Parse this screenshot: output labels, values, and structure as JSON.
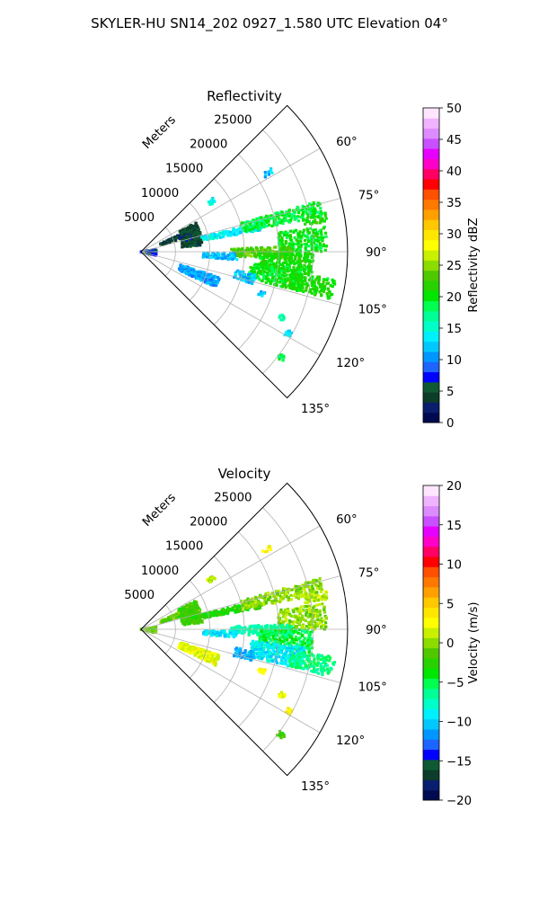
{
  "figure": {
    "title": "SKYLER-HU  SN14_202  0927_1.580 UTC Elevation 04°"
  },
  "chart_data": [
    {
      "type": "heatmap",
      "subtype": "polar-sector",
      "title": "Reflectivity",
      "radial_label": "Meters",
      "r_range": [
        0,
        30000
      ],
      "r_ticks": [
        5000,
        10000,
        15000,
        20000,
        25000
      ],
      "r_tick_labels": [
        "5000",
        "10000",
        "15000",
        "20000",
        "25000"
      ],
      "theta_range_deg": [
        45,
        135
      ],
      "theta_ticks_deg": [
        60,
        75,
        90,
        105,
        120,
        135
      ],
      "theta_tick_labels": [
        "60°",
        "75°",
        "90°",
        "105°",
        "120°",
        "135°"
      ],
      "grid": true,
      "colorbar": {
        "label": "Reflectivity dBZ",
        "range": [
          0,
          50
        ],
        "ticks": [
          0,
          5,
          10,
          15,
          20,
          25,
          30,
          35,
          40,
          45,
          50
        ],
        "tick_labels": [
          "0",
          "5",
          "10",
          "15",
          "20",
          "25",
          "30",
          "35",
          "40",
          "45",
          "50"
        ],
        "colors": [
          "#000a50",
          "#0a1e6e",
          "#0c3c2a",
          "#0f5a32",
          "#0000ff",
          "#1e64ff",
          "#0096ff",
          "#00c8ff",
          "#00f0ff",
          "#00ffc8",
          "#00ff96",
          "#00ff50",
          "#00e600",
          "#28d200",
          "#50c800",
          "#8cdc00",
          "#c8f000",
          "#ffff00",
          "#ffe600",
          "#ffc800",
          "#ffa000",
          "#ff7800",
          "#ff5000",
          "#ff0000",
          "#ff0064",
          "#ff00c8",
          "#e600ff",
          "#c850ff",
          "#dc8cff",
          "#f0b4ff",
          "#ffe6ff"
        ]
      },
      "echo_regions": [
        {
          "az_deg": [
            53,
            56
          ],
          "r": [
            12000,
            13000
          ],
          "value": 14
        },
        {
          "az_deg": [
            57,
            59
          ],
          "r": [
            21000,
            22500
          ],
          "value": 12
        },
        {
          "az_deg": [
            62,
            84
          ],
          "r": [
            6000,
            9000
          ],
          "value": 5
        },
        {
          "az_deg": [
            66,
            72
          ],
          "r": [
            3000,
            6000
          ],
          "value": 4
        },
        {
          "az_deg": [
            76,
            80
          ],
          "r": [
            9000,
            18000
          ],
          "value": 14
        },
        {
          "az_deg": [
            74,
            79
          ],
          "r": [
            15000,
            27000
          ],
          "value": 19
        },
        {
          "az_deg": [
            78,
            81
          ],
          "r": [
            24000,
            27500
          ],
          "value": 21
        },
        {
          "az_deg": [
            82,
            90
          ],
          "r": [
            20000,
            27000
          ],
          "value": 20
        },
        {
          "az_deg": [
            88,
            93
          ],
          "r": [
            13000,
            22000
          ],
          "value": 23
        },
        {
          "az_deg": [
            91,
            95
          ],
          "r": [
            9000,
            14000
          ],
          "value": 12
        },
        {
          "az_deg": [
            90,
            98
          ],
          "r": [
            17000,
            25000
          ],
          "value": 21
        },
        {
          "az_deg": [
            96,
            104
          ],
          "r": [
            16000,
            24000
          ],
          "value": 20
        },
        {
          "az_deg": [
            98,
            104
          ],
          "r": [
            22000,
            28500
          ],
          "value": 21
        },
        {
          "az_deg": [
            101,
            106
          ],
          "r": [
            14000,
            17000
          ],
          "value": 12
        },
        {
          "az_deg": [
            108,
            116
          ],
          "r": [
            6000,
            12000
          ],
          "value": 11
        },
        {
          "az_deg": [
            108,
            110
          ],
          "r": [
            18000,
            19000
          ],
          "value": 12
        },
        {
          "az_deg": [
            114,
            116
          ],
          "r": [
            22000,
            23000
          ],
          "value": 17
        },
        {
          "az_deg": [
            118,
            120
          ],
          "r": [
            24000,
            25000
          ],
          "value": 13
        },
        {
          "az_deg": [
            126,
            128
          ],
          "r": [
            25000,
            26000
          ],
          "value": 18
        },
        {
          "az_deg": [
            80,
            104
          ],
          "r": [
            0,
            2200
          ],
          "value": 7
        }
      ]
    },
    {
      "type": "heatmap",
      "subtype": "polar-sector",
      "title": "Velocity",
      "radial_label": "Meters",
      "r_range": [
        0,
        30000
      ],
      "r_ticks": [
        5000,
        10000,
        15000,
        20000,
        25000
      ],
      "r_tick_labels": [
        "5000",
        "10000",
        "15000",
        "20000",
        "25000"
      ],
      "theta_range_deg": [
        45,
        135
      ],
      "theta_ticks_deg": [
        60,
        75,
        90,
        105,
        120,
        135
      ],
      "theta_tick_labels": [
        "60°",
        "75°",
        "90°",
        "105°",
        "120°",
        "135°"
      ],
      "grid": true,
      "colorbar": {
        "label": "Velocity (m/s)",
        "range": [
          -20,
          20
        ],
        "ticks": [
          -20,
          -15,
          -10,
          -5,
          0,
          5,
          10,
          15,
          20
        ],
        "tick_labels": [
          "−20",
          "−15",
          "−10",
          "−5",
          "0",
          "5",
          "10",
          "15",
          "20"
        ],
        "colors": [
          "#000a50",
          "#0a1e6e",
          "#0c3c2a",
          "#0f5a32",
          "#0000ff",
          "#1e64ff",
          "#0096ff",
          "#00c8ff",
          "#00f0ff",
          "#00ffc8",
          "#00ff96",
          "#00ff50",
          "#00e600",
          "#28d200",
          "#50c800",
          "#8cdc00",
          "#c8f000",
          "#ffff00",
          "#ffe600",
          "#ffc800",
          "#ffa000",
          "#ff7800",
          "#ff5000",
          "#ff0000",
          "#ff0064",
          "#ff00c8",
          "#e600ff",
          "#c850ff",
          "#dc8cff",
          "#f0b4ff",
          "#ffe6ff"
        ]
      },
      "echo_regions": [
        {
          "az_deg": [
            53,
            56
          ],
          "r": [
            12000,
            13000
          ],
          "value": 1
        },
        {
          "az_deg": [
            57,
            59
          ],
          "r": [
            21000,
            22500
          ],
          "value": 3
        },
        {
          "az_deg": [
            62,
            84
          ],
          "r": [
            6000,
            9000
          ],
          "value": -2
        },
        {
          "az_deg": [
            66,
            72
          ],
          "r": [
            3000,
            6000
          ],
          "value": -1
        },
        {
          "az_deg": [
            76,
            80
          ],
          "r": [
            9000,
            18000
          ],
          "value": -3
        },
        {
          "az_deg": [
            74,
            79
          ],
          "r": [
            15000,
            27000
          ],
          "value": 0
        },
        {
          "az_deg": [
            78,
            81
          ],
          "r": [
            24000,
            27500
          ],
          "value": 1
        },
        {
          "az_deg": [
            82,
            90
          ],
          "r": [
            20000,
            27000
          ],
          "value": 0
        },
        {
          "az_deg": [
            88,
            93
          ],
          "r": [
            13000,
            22000
          ],
          "value": -7
        },
        {
          "az_deg": [
            91,
            95
          ],
          "r": [
            9000,
            14000
          ],
          "value": -9
        },
        {
          "az_deg": [
            90,
            98
          ],
          "r": [
            17000,
            25000
          ],
          "value": -5
        },
        {
          "az_deg": [
            96,
            104
          ],
          "r": [
            16000,
            24000
          ],
          "value": -9
        },
        {
          "az_deg": [
            98,
            104
          ],
          "r": [
            22000,
            28500
          ],
          "value": -6
        },
        {
          "az_deg": [
            101,
            106
          ],
          "r": [
            14000,
            17000
          ],
          "value": -11
        },
        {
          "az_deg": [
            108,
            116
          ],
          "r": [
            6000,
            12000
          ],
          "value": 2
        },
        {
          "az_deg": [
            108,
            110
          ],
          "r": [
            18000,
            19000
          ],
          "value": 3
        },
        {
          "az_deg": [
            114,
            116
          ],
          "r": [
            22000,
            23000
          ],
          "value": 2
        },
        {
          "az_deg": [
            118,
            120
          ],
          "r": [
            24000,
            25000
          ],
          "value": 3
        },
        {
          "az_deg": [
            126,
            128
          ],
          "r": [
            25000,
            26000
          ],
          "value": -2
        },
        {
          "az_deg": [
            80,
            104
          ],
          "r": [
            0,
            2200
          ],
          "value": -1
        }
      ]
    }
  ]
}
